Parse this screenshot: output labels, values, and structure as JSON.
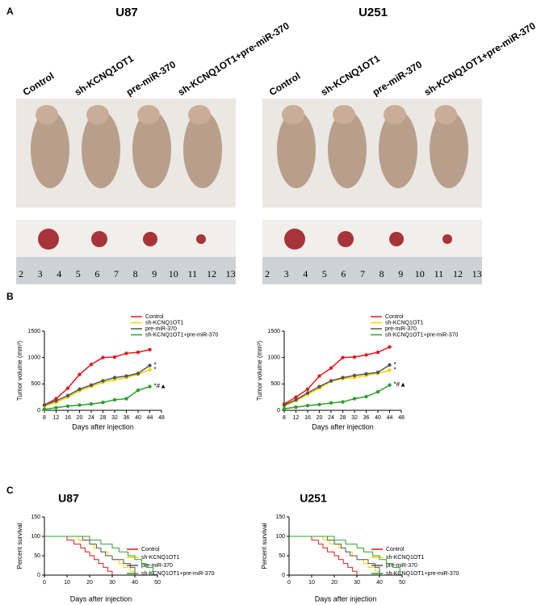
{
  "panel_labels": [
    "A",
    "B",
    "C"
  ],
  "photos": [
    {
      "title": "U87",
      "groups": [
        "Control",
        "sh-KCNQ1OT1",
        "pre-miR-370",
        "sh-KCNQ1OT1+pre-miR-370"
      ],
      "ruler": [
        "2",
        "3",
        "4",
        "5",
        "6",
        "7",
        "8",
        "9",
        "10",
        "11",
        "12",
        "13"
      ]
    },
    {
      "title": "U251",
      "groups": [
        "Control",
        "sh-KCNQ1OT1",
        "pre-miR-370",
        "sh-KCNQ1OT1+pre-miR-370"
      ],
      "ruler": [
        "2",
        "3",
        "4",
        "5",
        "6",
        "7",
        "8",
        "9",
        "10",
        "11",
        "12",
        "13"
      ]
    }
  ],
  "chart_data": [
    {
      "type": "line",
      "x_label": "Days after injection",
      "y_label": "Tumor volume (mm³)",
      "x": [
        8,
        12,
        16,
        20,
        24,
        28,
        32,
        36,
        40,
        44
      ],
      "xlim": [
        8,
        48
      ],
      "xticks": [
        8,
        12,
        16,
        20,
        24,
        28,
        32,
        36,
        40,
        44,
        48
      ],
      "ylim": [
        0,
        1500
      ],
      "yticks": [
        0,
        500,
        1000,
        1500
      ],
      "series": [
        {
          "name": "Control",
          "color": "#e3191c",
          "values": [
            100,
            220,
            420,
            680,
            870,
            1000,
            1010,
            1080,
            1100,
            1150
          ]
        },
        {
          "name": "sh-KCNQ1OT1",
          "color": "#f4d400",
          "values": [
            80,
            150,
            250,
            370,
            450,
            530,
            580,
            620,
            680,
            770
          ],
          "end_label": "*"
        },
        {
          "name": "pre-miR-370",
          "color": "#555555",
          "values": [
            100,
            180,
            280,
            400,
            480,
            560,
            620,
            650,
            700,
            850
          ],
          "end_label": "*"
        },
        {
          "name": "sh-KCNQ1OT1+pre-miR-370",
          "color": "#2aa02a",
          "values": [
            20,
            50,
            80,
            100,
            120,
            150,
            200,
            220,
            380,
            450
          ],
          "end_label": "*#▲"
        }
      ]
    },
    {
      "type": "line",
      "x_label": "Days after injection",
      "y_label": "Tumor volume (mm³)",
      "x": [
        8,
        12,
        16,
        20,
        24,
        28,
        32,
        36,
        40,
        44
      ],
      "xlim": [
        8,
        48
      ],
      "xticks": [
        8,
        12,
        16,
        20,
        24,
        28,
        32,
        36,
        40,
        44,
        48
      ],
      "ylim": [
        0,
        1500
      ],
      "yticks": [
        0,
        500,
        1000,
        1500
      ],
      "series": [
        {
          "name": "Control",
          "color": "#e3191c",
          "values": [
            120,
            250,
            400,
            650,
            800,
            1000,
            1010,
            1050,
            1100,
            1200
          ]
        },
        {
          "name": "sh-KCNQ1OT1",
          "color": "#f4d400",
          "values": [
            80,
            180,
            300,
            420,
            550,
            600,
            620,
            660,
            700,
            760
          ],
          "end_label": "*"
        },
        {
          "name": "pre-miR-370",
          "color": "#555555",
          "values": [
            100,
            200,
            330,
            450,
            560,
            620,
            660,
            690,
            720,
            860
          ],
          "end_label": "*"
        },
        {
          "name": "sh-KCNQ1OT1+pre-miR-370",
          "color": "#2aa02a",
          "values": [
            30,
            60,
            90,
            110,
            140,
            160,
            220,
            260,
            350,
            480
          ],
          "end_label": "*#▲"
        }
      ]
    },
    {
      "type": "step",
      "title": "U87",
      "x_label": "Days after injection",
      "y_label": "Percent survival",
      "xlim": [
        0,
        50
      ],
      "xticks": [
        0,
        10,
        20,
        30,
        40,
        50
      ],
      "ylim": [
        0,
        150
      ],
      "yticks": [
        0,
        50,
        100,
        150
      ],
      "series": [
        {
          "name": "Control",
          "color": "#e3191c",
          "x": [
            0,
            10,
            13,
            16,
            18,
            20,
            22,
            24,
            26,
            28,
            30
          ],
          "values": [
            100,
            90,
            80,
            70,
            60,
            50,
            40,
            30,
            20,
            10,
            0
          ]
        },
        {
          "name": "sh-KCNQ1OT1",
          "color": "#f4d400",
          "x": [
            0,
            15,
            20,
            22,
            25,
            28,
            30,
            33,
            35,
            38,
            40
          ],
          "values": [
            100,
            90,
            80,
            70,
            60,
            50,
            40,
            30,
            20,
            10,
            0
          ]
        },
        {
          "name": "pre-miR-370",
          "color": "#555555",
          "x": [
            0,
            17,
            20,
            23,
            25,
            27,
            30,
            35,
            38,
            40
          ],
          "values": [
            100,
            90,
            80,
            70,
            60,
            50,
            40,
            30,
            20,
            0
          ]
        },
        {
          "name": "sh-KCNQ1OT1+pre-miR-370",
          "color": "#2aa02a",
          "x": [
            0,
            20,
            25,
            30,
            33,
            37,
            40,
            43,
            45,
            48
          ],
          "values": [
            100,
            90,
            80,
            70,
            60,
            50,
            40,
            30,
            20,
            0
          ]
        }
      ]
    },
    {
      "type": "step",
      "title": "U251",
      "x_label": "Days after injection",
      "y_label": "Percent survival",
      "xlim": [
        0,
        50
      ],
      "xticks": [
        0,
        10,
        20,
        30,
        40,
        50
      ],
      "ylim": [
        0,
        150
      ],
      "yticks": [
        0,
        50,
        100,
        150
      ],
      "series": [
        {
          "name": "Control",
          "color": "#e3191c",
          "x": [
            0,
            10,
            13,
            15,
            17,
            20,
            22,
            24,
            26,
            28,
            30
          ],
          "values": [
            100,
            90,
            80,
            70,
            60,
            50,
            40,
            30,
            20,
            10,
            0
          ]
        },
        {
          "name": "sh-KCNQ1OT1",
          "color": "#f4d400",
          "x": [
            0,
            15,
            18,
            22,
            25,
            28,
            30,
            33,
            35,
            38,
            40
          ],
          "values": [
            100,
            90,
            80,
            70,
            60,
            50,
            40,
            30,
            20,
            10,
            0
          ]
        },
        {
          "name": "pre-miR-370",
          "color": "#555555",
          "x": [
            0,
            17,
            20,
            23,
            25,
            27,
            30,
            35,
            38,
            40
          ],
          "values": [
            100,
            90,
            80,
            70,
            60,
            50,
            40,
            30,
            20,
            0
          ]
        },
        {
          "name": "sh-KCNQ1OT1+pre-miR-370",
          "color": "#2aa02a",
          "x": [
            0,
            20,
            25,
            30,
            33,
            37,
            40,
            43,
            46,
            49
          ],
          "values": [
            100,
            90,
            80,
            70,
            60,
            50,
            40,
            30,
            20,
            0
          ]
        }
      ]
    }
  ]
}
